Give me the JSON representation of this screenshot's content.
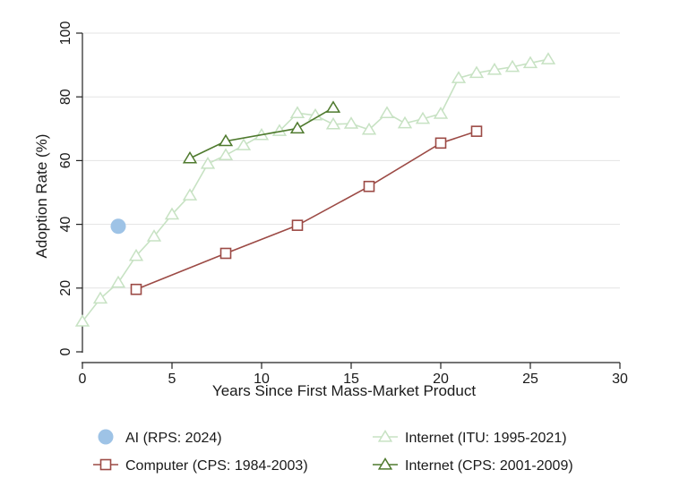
{
  "chart_data": {
    "type": "line",
    "title": "",
    "xlabel": "Years Since First Mass-Market Product",
    "ylabel": "Adoption Rate (%)",
    "xlim": [
      0,
      30
    ],
    "ylim": [
      0,
      100
    ],
    "xticks": [
      0,
      5,
      10,
      15,
      20,
      25,
      30
    ],
    "yticks": [
      0,
      20,
      40,
      60,
      80,
      100
    ],
    "grid": true,
    "legend_position": "bottom",
    "series": [
      {
        "name": "AI (RPS: 2024)",
        "marker": "filled-circle",
        "line": false,
        "color": "#9ec3e6",
        "points": [
          [
            2,
            39.4
          ]
        ]
      },
      {
        "name": "Internet (ITU: 1995-2021)",
        "marker": "hollow-triangle",
        "line": true,
        "color": "#c7e2c3",
        "points": [
          [
            0,
            9.5
          ],
          [
            1,
            16.7
          ],
          [
            2,
            21.7
          ],
          [
            3,
            30.1
          ],
          [
            4,
            36.2
          ],
          [
            5,
            43.1
          ],
          [
            6,
            49.1
          ],
          [
            7,
            59.0
          ],
          [
            8,
            61.7
          ],
          [
            9,
            64.8
          ],
          [
            10,
            68.0
          ],
          [
            11,
            69.3
          ],
          [
            12,
            74.9
          ],
          [
            13,
            74.2
          ],
          [
            14,
            71.4
          ],
          [
            15,
            71.6
          ],
          [
            16,
            69.7
          ],
          [
            17,
            74.9
          ],
          [
            18,
            71.7
          ],
          [
            19,
            73.1
          ],
          [
            20,
            74.7
          ],
          [
            21,
            85.9
          ],
          [
            22,
            87.5
          ],
          [
            23,
            88.5
          ],
          [
            24,
            89.4
          ],
          [
            25,
            90.6
          ],
          [
            26,
            91.8
          ]
        ]
      },
      {
        "name": "Computer (CPS: 1984-2003)",
        "marker": "hollow-square",
        "line": true,
        "color": "#9c4a45",
        "points": [
          [
            3,
            19.6
          ],
          [
            8,
            30.9
          ],
          [
            12,
            39.7
          ],
          [
            16,
            51.9
          ],
          [
            20,
            65.5
          ],
          [
            22,
            69.2
          ]
        ]
      },
      {
        "name": "Internet (CPS: 2001-2009)",
        "marker": "hollow-triangle",
        "line": true,
        "color": "#4f7a2e",
        "points": [
          [
            6,
            60.7
          ],
          [
            8,
            66.1
          ],
          [
            12,
            70.1
          ],
          [
            14,
            76.6
          ]
        ]
      }
    ],
    "legend_order": [
      0,
      1,
      2,
      3
    ]
  }
}
